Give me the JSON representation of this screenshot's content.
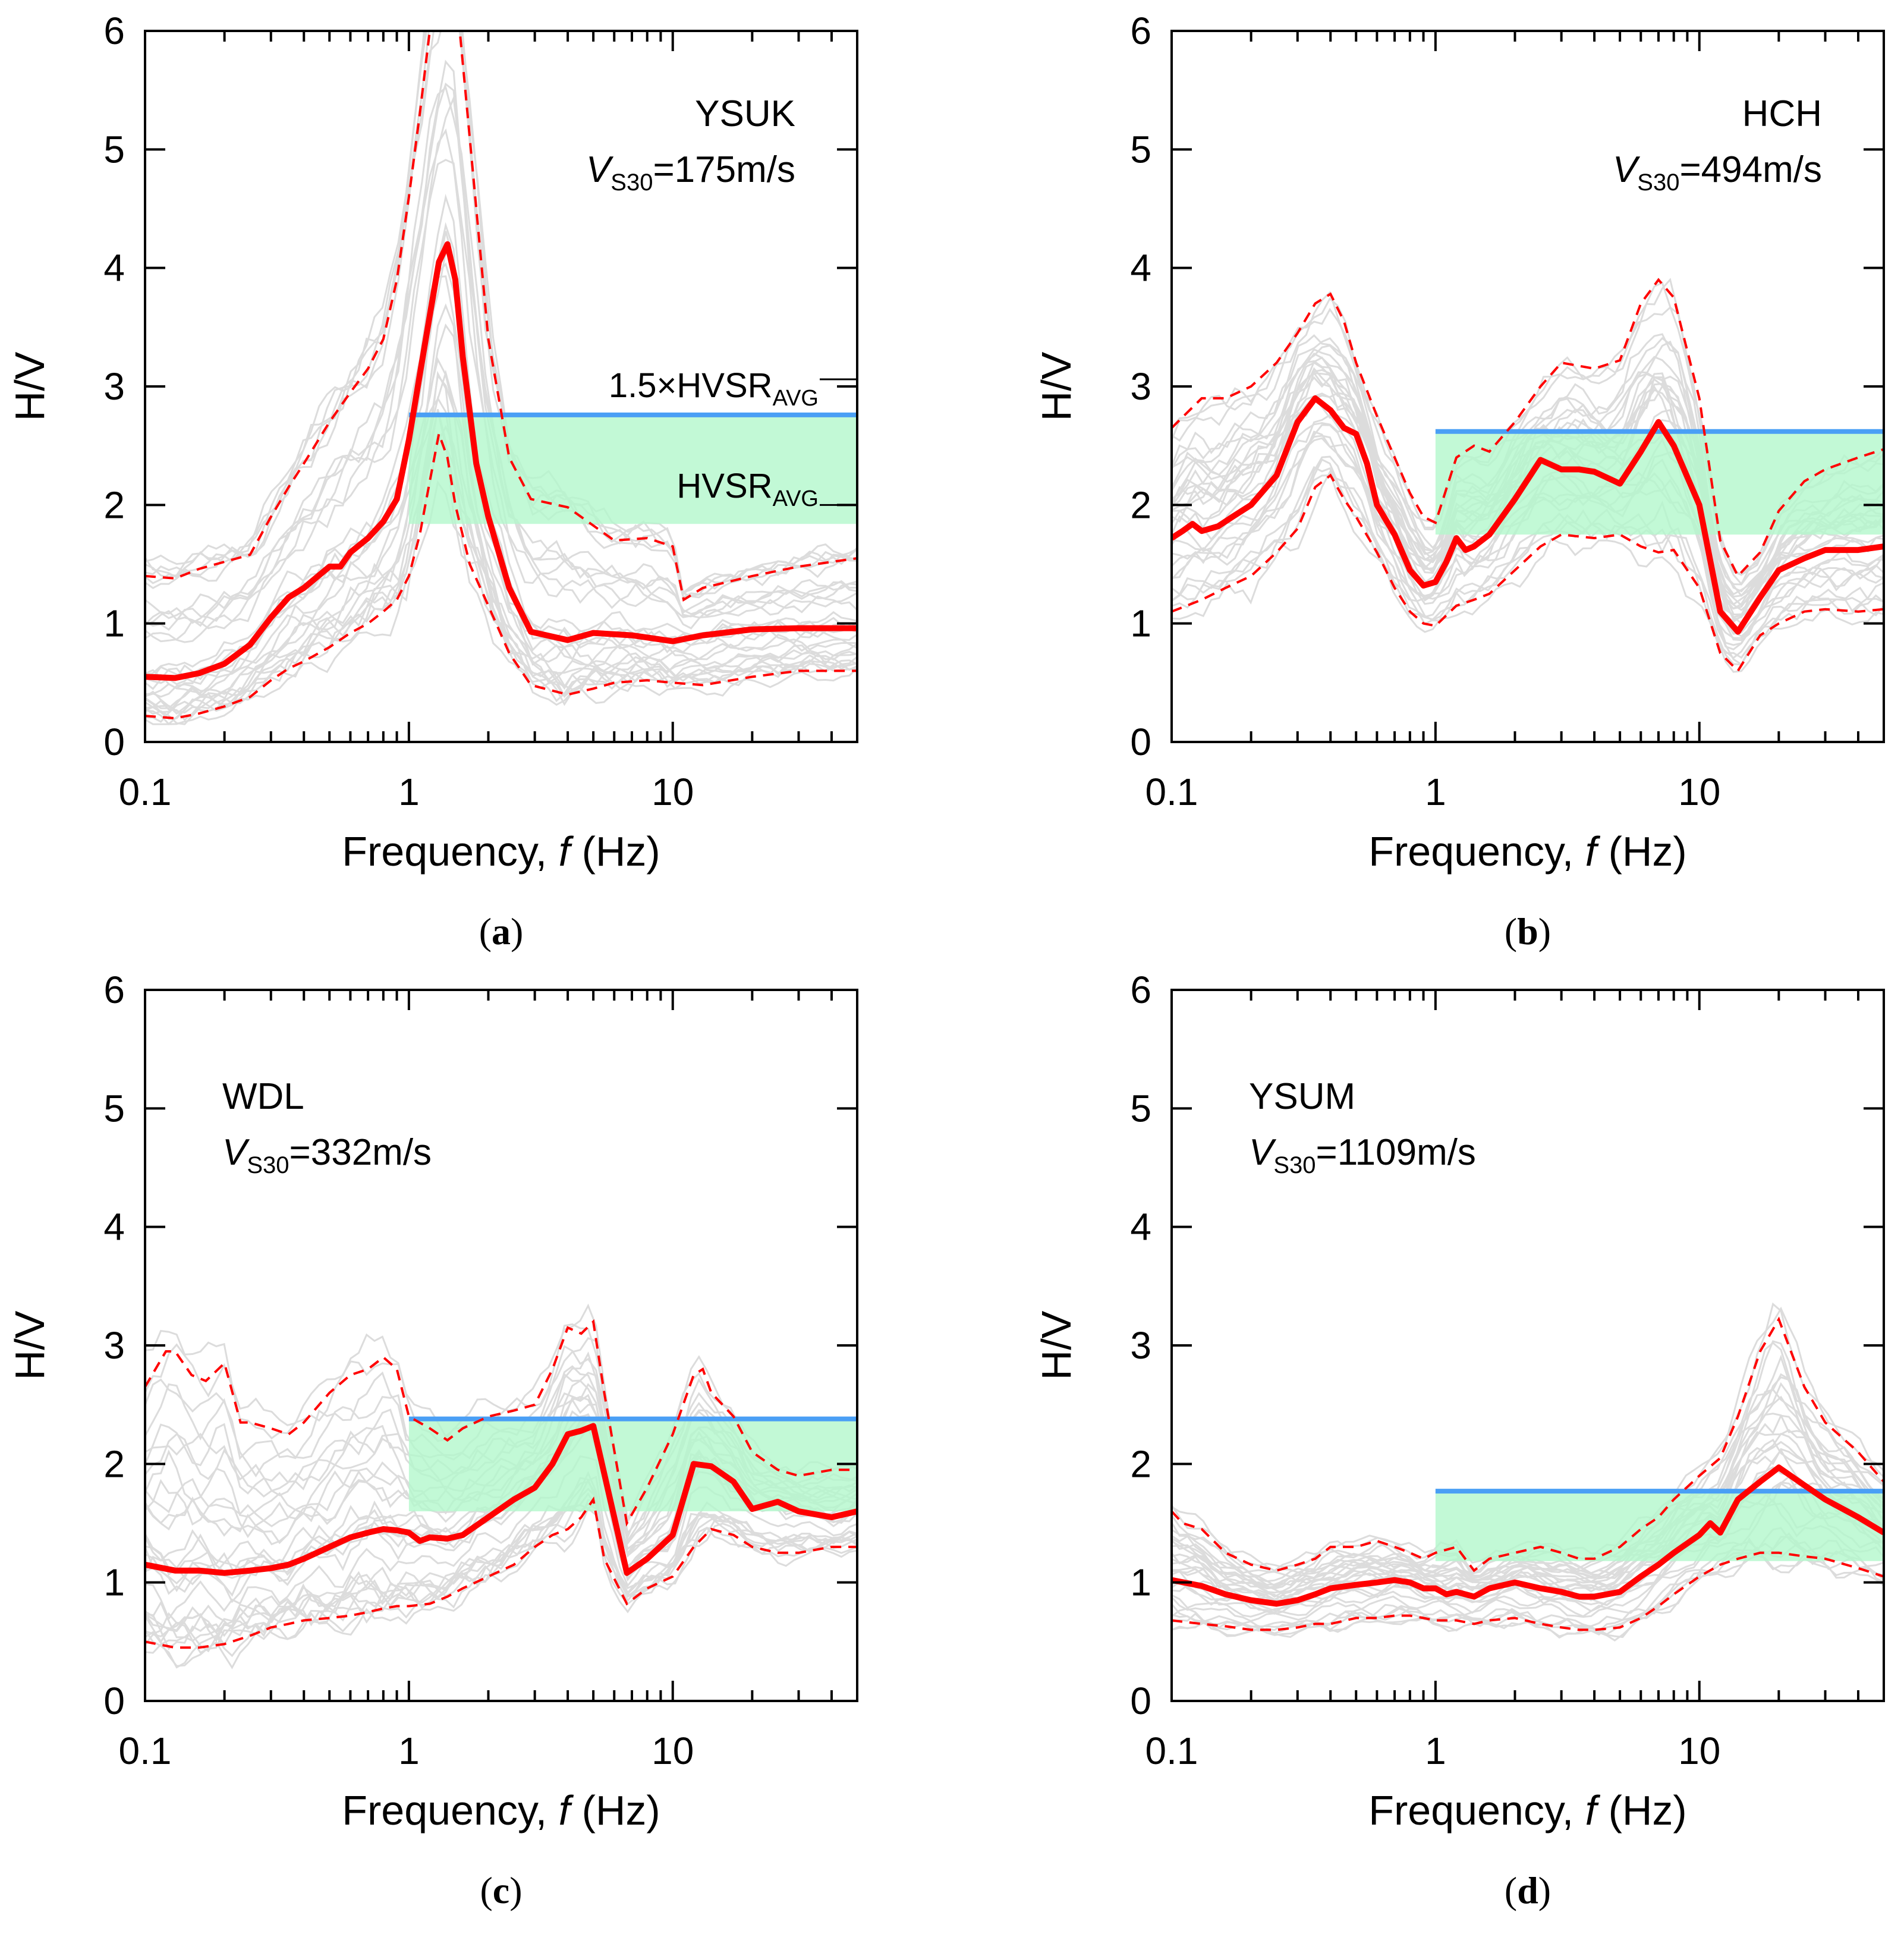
{
  "figure": {
    "colors": {
      "median": "#ff0000",
      "bounds": "#ff0000",
      "individual": "#dcdcdc",
      "upper_line": "#4a9ff5",
      "band": "#b3f7cc"
    }
  },
  "chart_data": [
    {
      "panel": "a",
      "type": "line",
      "station": "YSUK",
      "vs30": "=175m/s",
      "xlabel": "Frequency, f (Hz)",
      "ylabel": "H/V",
      "xscale": "log",
      "xlim": [
        0.1,
        50
      ],
      "ylim": [
        0,
        6
      ],
      "x_ticks": [
        "0.1",
        "1",
        "10"
      ],
      "y_ticks": [
        "0",
        "1",
        "2",
        "3",
        "4",
        "5",
        "6"
      ],
      "annotations": {
        "upper_label": "1.5×HVSR",
        "lower_label": "HVSR",
        "subscript": "AVG"
      },
      "band": {
        "f_start": 1,
        "lower": 1.84,
        "upper": 2.76
      },
      "series": [
        {
          "role": "median",
          "x": [
            0.1,
            0.13,
            0.16,
            0.2,
            0.25,
            0.3,
            0.35,
            0.4,
            0.5,
            0.55,
            0.6,
            0.7,
            0.8,
            0.9,
            1.0,
            1.1,
            1.2,
            1.3,
            1.4,
            1.5,
            1.6,
            1.8,
            2.0,
            2.4,
            2.9,
            4,
            5,
            7,
            10,
            13,
            20,
            30,
            50
          ],
          "y": [
            0.55,
            0.54,
            0.58,
            0.66,
            0.82,
            1.05,
            1.22,
            1.3,
            1.48,
            1.48,
            1.6,
            1.72,
            1.86,
            2.05,
            2.55,
            3.1,
            3.6,
            4.05,
            4.2,
            3.9,
            3.25,
            2.35,
            1.9,
            1.3,
            0.93,
            0.86,
            0.92,
            0.9,
            0.85,
            0.9,
            0.95,
            0.96,
            0.96
          ]
        },
        {
          "role": "upper",
          "x": [
            0.1,
            0.13,
            0.16,
            0.2,
            0.25,
            0.3,
            0.35,
            0.4,
            0.5,
            0.6,
            0.7,
            0.8,
            0.9,
            1.0,
            1.1,
            1.2,
            1.3,
            1.5,
            1.7,
            2.0,
            2.4,
            2.9,
            4,
            6,
            8,
            10,
            11,
            13,
            20,
            30,
            50
          ],
          "y": [
            1.4,
            1.38,
            1.46,
            1.52,
            1.58,
            1.9,
            2.15,
            2.35,
            2.7,
            2.95,
            3.15,
            3.4,
            3.9,
            4.6,
            5.3,
            6.0,
            6.3,
            6.4,
            5.1,
            3.4,
            2.4,
            2.05,
            1.98,
            1.7,
            1.72,
            1.65,
            1.2,
            1.3,
            1.4,
            1.48,
            1.55
          ]
        },
        {
          "role": "lower",
          "x": [
            0.1,
            0.13,
            0.16,
            0.2,
            0.25,
            0.3,
            0.35,
            0.4,
            0.5,
            0.6,
            0.7,
            0.8,
            0.9,
            1.0,
            1.1,
            1.2,
            1.3,
            1.4,
            1.5,
            1.7,
            2.0,
            2.4,
            2.9,
            4,
            5,
            6,
            8,
            10,
            13,
            20,
            30,
            50
          ],
          "y": [
            0.22,
            0.2,
            0.24,
            0.3,
            0.38,
            0.52,
            0.62,
            0.68,
            0.8,
            0.92,
            1.0,
            1.1,
            1.2,
            1.4,
            1.75,
            2.2,
            2.6,
            2.4,
            2.0,
            1.5,
            1.15,
            0.75,
            0.48,
            0.4,
            0.45,
            0.5,
            0.52,
            0.5,
            0.48,
            0.55,
            0.6,
            0.6
          ]
        }
      ]
    },
    {
      "panel": "b",
      "type": "line",
      "station": "HCH",
      "vs30": "=494m/s",
      "xlabel": "Frequency, f (Hz)",
      "ylabel": "H/V",
      "xscale": "log",
      "xlim": [
        0.1,
        50
      ],
      "ylim": [
        0,
        6
      ],
      "x_ticks": [
        "0.1",
        "1",
        "10"
      ],
      "y_ticks": [
        "0",
        "1",
        "2",
        "3",
        "4",
        "5",
        "6"
      ],
      "band": {
        "f_start": 1,
        "lower": 1.75,
        "upper": 2.62
      },
      "series": [
        {
          "role": "median",
          "x": [
            0.1,
            0.11,
            0.12,
            0.13,
            0.15,
            0.17,
            0.2,
            0.25,
            0.3,
            0.35,
            0.4,
            0.45,
            0.5,
            0.55,
            0.6,
            0.7,
            0.8,
            0.9,
            1.0,
            1.1,
            1.2,
            1.3,
            1.4,
            1.6,
            2.0,
            2.5,
            3.0,
            3.5,
            4.0,
            5.0,
            6.0,
            7.0,
            8.0,
            10.0,
            12.0,
            14.0,
            17,
            20,
            25,
            30,
            40,
            50
          ],
          "y": [
            1.72,
            1.78,
            1.84,
            1.78,
            1.82,
            1.9,
            2.0,
            2.25,
            2.7,
            2.9,
            2.8,
            2.65,
            2.6,
            2.35,
            2.0,
            1.75,
            1.45,
            1.32,
            1.35,
            1.52,
            1.72,
            1.62,
            1.65,
            1.75,
            2.05,
            2.38,
            2.3,
            2.3,
            2.28,
            2.18,
            2.45,
            2.7,
            2.5,
            2.0,
            1.1,
            0.93,
            1.22,
            1.45,
            1.55,
            1.62,
            1.62,
            1.65
          ]
        },
        {
          "role": "upper",
          "x": [
            0.1,
            0.13,
            0.16,
            0.2,
            0.25,
            0.3,
            0.35,
            0.4,
            0.45,
            0.5,
            0.6,
            0.7,
            0.8,
            0.9,
            1.0,
            1.2,
            1.4,
            1.6,
            2.0,
            2.5,
            3.0,
            4.0,
            5.0,
            6.0,
            7.0,
            8.0,
            10.0,
            12.0,
            14.0,
            17,
            20,
            25,
            30,
            40,
            50
          ],
          "y": [
            2.65,
            2.9,
            2.9,
            3.0,
            3.2,
            3.45,
            3.7,
            3.78,
            3.55,
            3.2,
            2.75,
            2.4,
            2.1,
            1.9,
            1.85,
            2.4,
            2.5,
            2.45,
            2.7,
            3.0,
            3.2,
            3.15,
            3.22,
            3.7,
            3.9,
            3.75,
            2.9,
            1.7,
            1.4,
            1.6,
            1.95,
            2.2,
            2.3,
            2.4,
            2.47
          ]
        },
        {
          "role": "lower",
          "x": [
            0.1,
            0.13,
            0.16,
            0.2,
            0.25,
            0.3,
            0.35,
            0.4,
            0.45,
            0.5,
            0.6,
            0.7,
            0.8,
            0.9,
            1.0,
            1.2,
            1.4,
            1.6,
            2.0,
            2.5,
            3.0,
            4.0,
            5.0,
            6.0,
            7.0,
            8.0,
            10.0,
            12.0,
            14.0,
            17,
            20,
            25,
            30,
            40,
            50
          ],
          "y": [
            1.1,
            1.2,
            1.3,
            1.4,
            1.6,
            1.8,
            2.15,
            2.25,
            2.05,
            1.9,
            1.6,
            1.3,
            1.1,
            1.0,
            0.98,
            1.15,
            1.2,
            1.25,
            1.45,
            1.65,
            1.75,
            1.72,
            1.75,
            1.65,
            1.6,
            1.62,
            1.3,
            0.75,
            0.6,
            0.9,
            1.0,
            1.1,
            1.12,
            1.1,
            1.12
          ]
        }
      ]
    },
    {
      "panel": "c",
      "type": "line",
      "station": "WDL",
      "vs30": "=332m/s",
      "xlabel": "Frequency, f (Hz)",
      "ylabel": "H/V",
      "xscale": "log",
      "xlim": [
        0.1,
        50
      ],
      "ylim": [
        0,
        6
      ],
      "x_ticks": [
        "0.1",
        "1",
        "10"
      ],
      "y_ticks": [
        "0",
        "1",
        "2",
        "3",
        "4",
        "5",
        "6"
      ],
      "band": {
        "f_start": 1,
        "lower": 1.6,
        "upper": 2.38
      },
      "series": [
        {
          "role": "median",
          "x": [
            0.1,
            0.13,
            0.16,
            0.2,
            0.25,
            0.3,
            0.35,
            0.4,
            0.5,
            0.6,
            0.7,
            0.8,
            0.9,
            1.0,
            1.1,
            1.2,
            1.4,
            1.6,
            2.0,
            2.5,
            3.0,
            3.5,
            4.0,
            4.5,
            5.0,
            6.0,
            6.7,
            8.0,
            10.0,
            12.0,
            14.0,
            17,
            20,
            25,
            30,
            40,
            50
          ],
          "y": [
            1.15,
            1.1,
            1.1,
            1.08,
            1.1,
            1.12,
            1.15,
            1.2,
            1.3,
            1.38,
            1.42,
            1.45,
            1.44,
            1.42,
            1.35,
            1.38,
            1.37,
            1.4,
            1.55,
            1.7,
            1.8,
            2.0,
            2.25,
            2.28,
            2.32,
            1.55,
            1.08,
            1.2,
            1.4,
            2.0,
            1.98,
            1.85,
            1.62,
            1.68,
            1.6,
            1.55,
            1.6
          ]
        },
        {
          "role": "upper",
          "x": [
            0.1,
            0.12,
            0.13,
            0.15,
            0.17,
            0.2,
            0.23,
            0.25,
            0.3,
            0.35,
            0.4,
            0.5,
            0.6,
            0.7,
            0.8,
            0.9,
            1.0,
            1.2,
            1.4,
            1.6,
            2.0,
            2.5,
            3.0,
            3.5,
            4.0,
            4.5,
            5.0,
            5.5,
            6.7,
            8,
            10,
            12,
            13,
            14,
            17,
            20,
            25,
            30,
            40,
            50
          ],
          "y": [
            2.65,
            2.95,
            2.95,
            2.75,
            2.7,
            2.85,
            2.35,
            2.35,
            2.3,
            2.25,
            2.35,
            2.6,
            2.75,
            2.8,
            2.9,
            2.8,
            2.4,
            2.3,
            2.2,
            2.3,
            2.4,
            2.45,
            2.5,
            2.8,
            3.15,
            3.1,
            3.2,
            2.6,
            1.5,
            1.8,
            2.25,
            2.75,
            2.8,
            2.6,
            2.4,
            2.1,
            1.95,
            1.9,
            1.95,
            1.95
          ]
        },
        {
          "role": "lower",
          "x": [
            0.1,
            0.13,
            0.16,
            0.2,
            0.25,
            0.3,
            0.35,
            0.4,
            0.5,
            0.6,
            0.7,
            0.8,
            0.9,
            1.0,
            1.2,
            1.4,
            1.6,
            2.0,
            2.5,
            3.0,
            3.5,
            4.0,
            4.5,
            5.0,
            5.5,
            6.7,
            8,
            10,
            12,
            14,
            17,
            20,
            25,
            30,
            40,
            50
          ],
          "y": [
            0.5,
            0.45,
            0.45,
            0.48,
            0.55,
            0.62,
            0.65,
            0.68,
            0.7,
            0.72,
            0.75,
            0.78,
            0.8,
            0.8,
            0.82,
            0.88,
            0.95,
            1.05,
            1.15,
            1.3,
            1.4,
            1.45,
            1.55,
            1.7,
            1.2,
            0.82,
            0.95,
            1.05,
            1.3,
            1.45,
            1.4,
            1.3,
            1.25,
            1.25,
            1.3,
            1.3
          ]
        }
      ]
    },
    {
      "panel": "d",
      "type": "line",
      "station": "YSUM",
      "vs30": "=1109m/s",
      "xlabel": "Frequency, f (Hz)",
      "ylabel": "H/V",
      "xscale": "log",
      "xlim": [
        0.1,
        50
      ],
      "ylim": [
        0,
        6
      ],
      "x_ticks": [
        "0.1",
        "1",
        "10"
      ],
      "y_ticks": [
        "0",
        "1",
        "2",
        "3",
        "4",
        "5",
        "6"
      ],
      "band": {
        "f_start": 1,
        "lower": 1.18,
        "upper": 1.77
      },
      "series": [
        {
          "role": "median",
          "x": [
            0.1,
            0.13,
            0.16,
            0.2,
            0.25,
            0.3,
            0.35,
            0.4,
            0.5,
            0.6,
            0.7,
            0.8,
            0.9,
            1.0,
            1.1,
            1.2,
            1.4,
            1.6,
            2.0,
            2.5,
            3.0,
            3.5,
            4.0,
            5.0,
            6.0,
            7.0,
            8,
            10,
            11,
            12,
            14,
            17,
            20,
            25,
            30,
            40,
            50
          ],
          "y": [
            1.02,
            0.97,
            0.9,
            0.85,
            0.82,
            0.85,
            0.9,
            0.95,
            0.98,
            1.0,
            1.02,
            1.0,
            0.95,
            0.95,
            0.9,
            0.92,
            0.88,
            0.95,
            1.0,
            0.95,
            0.92,
            0.88,
            0.88,
            0.92,
            1.05,
            1.15,
            1.25,
            1.4,
            1.5,
            1.42,
            1.7,
            1.85,
            1.97,
            1.82,
            1.7,
            1.55,
            1.42
          ]
        },
        {
          "role": "upper",
          "x": [
            0.1,
            0.11,
            0.13,
            0.16,
            0.2,
            0.25,
            0.3,
            0.35,
            0.4,
            0.5,
            0.6,
            0.7,
            0.8,
            0.9,
            1.0,
            1.2,
            1.4,
            1.6,
            2.0,
            2.5,
            3.0,
            3.5,
            4.0,
            5.0,
            6.0,
            7.0,
            8,
            10,
            12,
            14,
            17,
            20,
            25,
            30,
            40,
            50
          ],
          "y": [
            1.6,
            1.5,
            1.45,
            1.25,
            1.15,
            1.1,
            1.15,
            1.2,
            1.3,
            1.3,
            1.35,
            1.3,
            1.25,
            1.2,
            1.25,
            1.3,
            1.1,
            1.2,
            1.25,
            1.3,
            1.25,
            1.2,
            1.2,
            1.3,
            1.45,
            1.55,
            1.7,
            1.9,
            2.05,
            2.4,
            2.95,
            3.22,
            2.65,
            2.35,
            2.1,
            1.85
          ]
        },
        {
          "role": "lower",
          "x": [
            0.1,
            0.13,
            0.16,
            0.2,
            0.25,
            0.3,
            0.35,
            0.4,
            0.5,
            0.6,
            0.7,
            0.8,
            0.9,
            1.0,
            1.2,
            1.4,
            1.6,
            2.0,
            2.5,
            3.0,
            3.5,
            4.0,
            5.0,
            6.0,
            7.0,
            8,
            10,
            12,
            14,
            17,
            20,
            25,
            30,
            40,
            50
          ],
          "y": [
            0.68,
            0.65,
            0.63,
            0.6,
            0.6,
            0.62,
            0.65,
            0.65,
            0.7,
            0.7,
            0.72,
            0.72,
            0.7,
            0.68,
            0.68,
            0.65,
            0.68,
            0.7,
            0.65,
            0.62,
            0.6,
            0.6,
            0.62,
            0.7,
            0.8,
            0.9,
            1.05,
            1.15,
            1.2,
            1.25,
            1.25,
            1.22,
            1.2,
            1.12,
            1.05
          ]
        }
      ]
    }
  ]
}
